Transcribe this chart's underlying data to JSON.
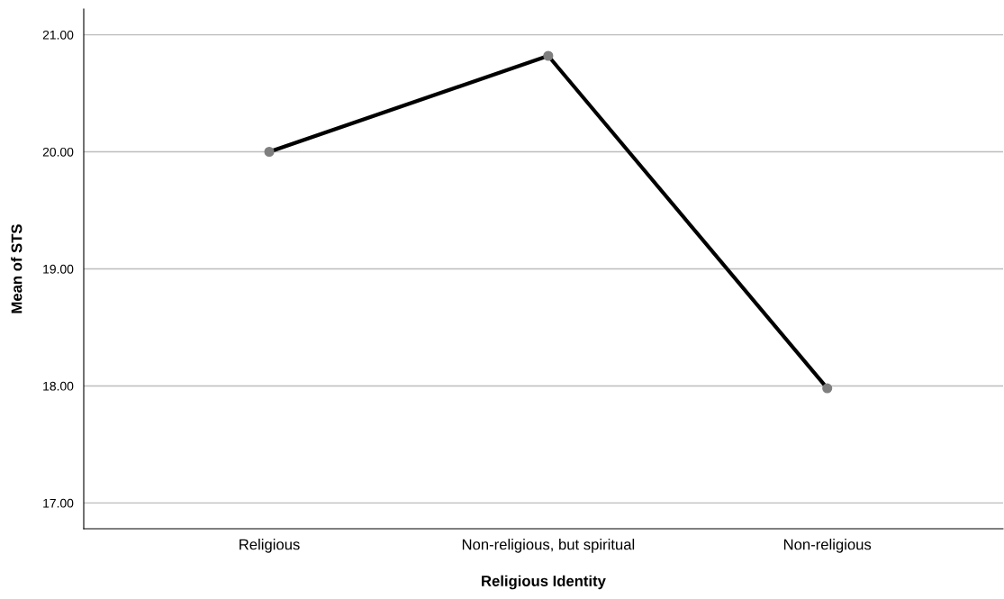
{
  "chart_data": {
    "type": "line",
    "xlabel": "Religious Identity",
    "ylabel": "Mean of STS",
    "categories": [
      "Religious",
      "Non-religious, but spiritual",
      "Non-religious"
    ],
    "series": [
      {
        "color": "#000000",
        "colors": [
          "#7f7f7f",
          "#7f7f7f",
          "#7f7f7f"
        ],
        "values": [
          20.0,
          20.82,
          17.98
        ]
      }
    ],
    "ylim": [
      16.78,
      21.22
    ],
    "yticks": [
      {
        "value": 17,
        "label": "17.00"
      },
      {
        "value": 18,
        "label": "18.00"
      },
      {
        "value": 19,
        "label": "19.00"
      },
      {
        "value": 20,
        "label": "20.00"
      },
      {
        "value": 21,
        "label": "21.00"
      }
    ],
    "grid": "y",
    "marker": "circle",
    "line_style": "solid"
  }
}
